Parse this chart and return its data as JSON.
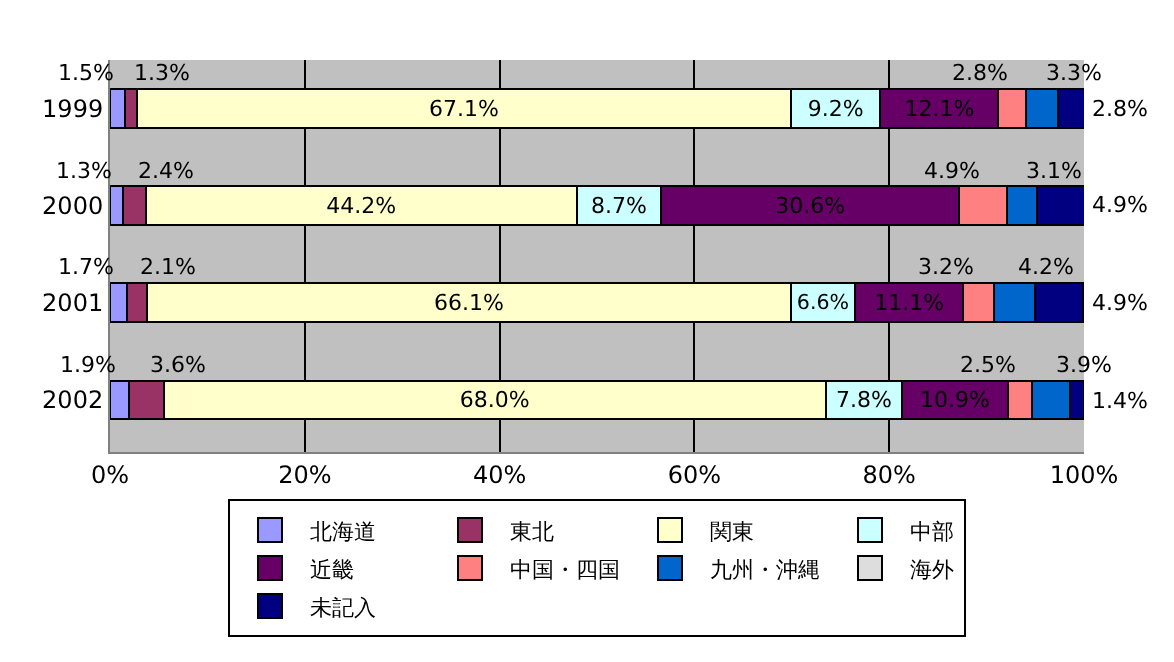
{
  "chart_data": {
    "type": "bar",
    "orientation": "horizontal",
    "stacked": true,
    "categories": [
      "1999",
      "2000",
      "2001",
      "2002"
    ],
    "series": [
      {
        "name": "北海道",
        "color": "#9999ff",
        "values": [
          1.5,
          1.3,
          1.7,
          1.9
        ],
        "value_labels": [
          "1.5%",
          "1.3%",
          "1.7%",
          "1.9%"
        ]
      },
      {
        "name": "東北",
        "color": "#993366",
        "values": [
          1.3,
          2.4,
          2.1,
          3.6
        ],
        "value_labels": [
          "1.3%",
          "2.4%",
          "2.1%",
          "3.6%"
        ]
      },
      {
        "name": "関東",
        "color": "#ffffcc",
        "values": [
          67.1,
          44.2,
          66.1,
          68.0
        ],
        "value_labels": [
          "67.1%",
          "44.2%",
          "66.1%",
          "68.0%"
        ]
      },
      {
        "name": "中部",
        "color": "#ccffff",
        "values": [
          9.2,
          8.7,
          6.6,
          7.8
        ],
        "value_labels": [
          "9.2%",
          "8.7%",
          "6.6%",
          "7.8%"
        ]
      },
      {
        "name": "近畿",
        "color": "#660066",
        "values": [
          12.1,
          30.6,
          11.1,
          10.9
        ],
        "value_labels": [
          "12.1%",
          "30.6%",
          "11.1%",
          "10.9%"
        ]
      },
      {
        "name": "中国・四国",
        "color": "#ff8080",
        "values": [
          2.8,
          4.9,
          3.2,
          2.5
        ],
        "value_labels": [
          "2.8%",
          "4.9%",
          "3.2%",
          "2.5%"
        ]
      },
      {
        "name": "九州・沖縄",
        "color": "#0066cc",
        "values": [
          3.3,
          3.1,
          4.2,
          3.9
        ],
        "value_labels": [
          "3.3%",
          "3.1%",
          "4.2%",
          "3.9%"
        ]
      },
      {
        "name": "海外",
        "color": "#dddddd",
        "values": [
          0,
          0,
          0,
          0
        ],
        "value_labels": [
          null,
          null,
          null,
          null
        ]
      },
      {
        "name": "未記入",
        "color": "#000080",
        "values": [
          2.8,
          4.9,
          4.9,
          1.4
        ],
        "value_labels": [
          "2.8%",
          "4.9%",
          "4.9%",
          "1.4%"
        ]
      }
    ],
    "xlim": [
      0,
      100
    ],
    "xticks": [
      {
        "value": 0,
        "label": "0%"
      },
      {
        "value": 20,
        "label": "20%"
      },
      {
        "value": 40,
        "label": "40%"
      },
      {
        "value": 60,
        "label": "60%"
      },
      {
        "value": 80,
        "label": "80%"
      },
      {
        "value": 100,
        "label": "100%"
      }
    ],
    "grid": "x",
    "legend": "bottom"
  }
}
